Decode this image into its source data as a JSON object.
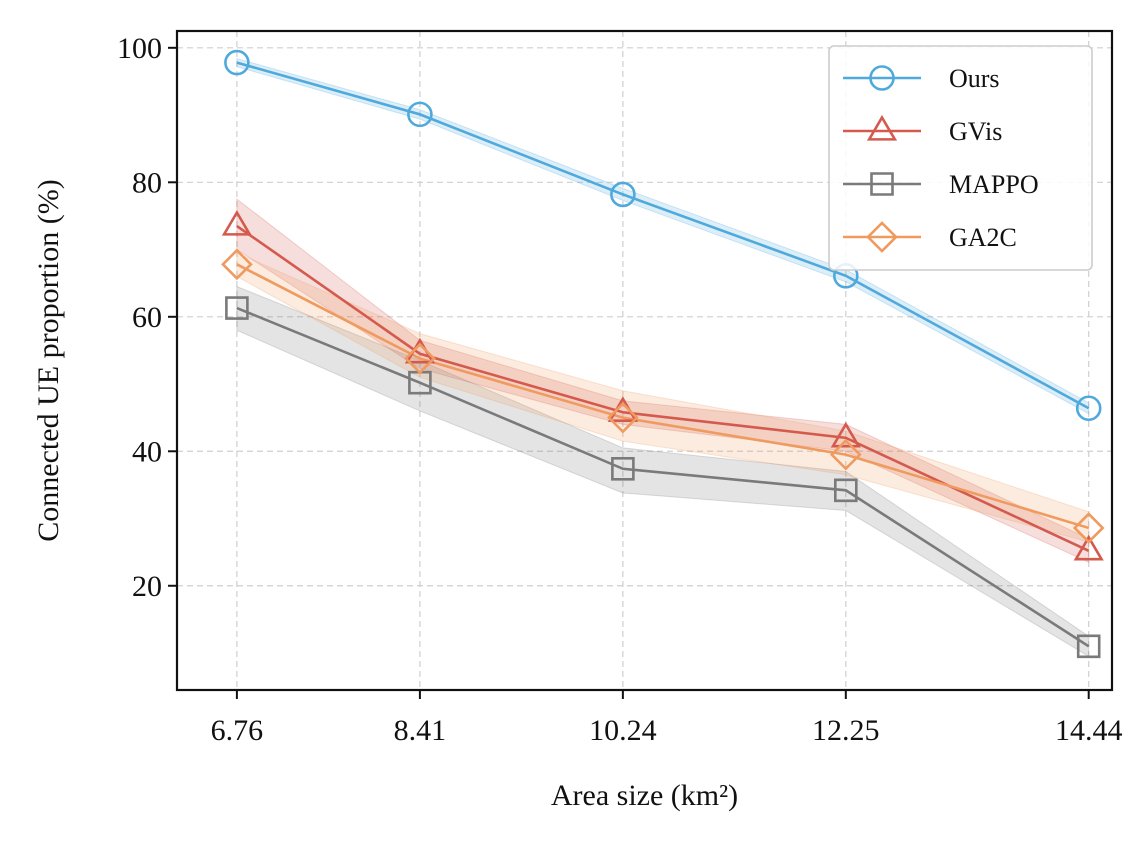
{
  "chart_data": {
    "type": "line",
    "title": "",
    "xlabel": "Area size (km²)",
    "ylabel": "Connected UE proportion (%)",
    "x": [
      6.76,
      8.41,
      10.24,
      12.25,
      14.44
    ],
    "x_tick_labels": [
      "6.76",
      "8.41",
      "10.24",
      "12.25",
      "14.44"
    ],
    "y_ticks": [
      20,
      40,
      60,
      80,
      100
    ],
    "y_tick_labels": [
      "20",
      "40",
      "60",
      "80",
      "100"
    ],
    "xlim": [
      6.22,
      14.65
    ],
    "ylim": [
      4.5,
      102.5
    ],
    "grid": true,
    "legend_position": "top-right",
    "series": [
      {
        "name": "Ours",
        "marker": "circle",
        "color": "#4fa9dd",
        "values": [
          97.8,
          90.1,
          78.2,
          66.1,
          46.4
        ],
        "lower": [
          97.2,
          89.4,
          77.3,
          65.2,
          45.6
        ],
        "upper": [
          98.4,
          90.8,
          79.1,
          67.0,
          47.2
        ]
      },
      {
        "name": "GVis",
        "marker": "triangle",
        "color": "#d45a4e",
        "values": [
          73.5,
          54.5,
          45.8,
          42.0,
          25.2
        ],
        "lower": [
          70.0,
          52.3,
          44.0,
          40.0,
          23.5
        ],
        "upper": [
          77.5,
          56.5,
          47.5,
          44.0,
          27.0
        ]
      },
      {
        "name": "MAPPO",
        "marker": "square",
        "color": "#7a7a7a",
        "values": [
          61.3,
          50.2,
          37.4,
          34.2,
          11.0
        ],
        "lower": [
          58.0,
          46.0,
          33.8,
          31.2,
          9.5
        ],
        "upper": [
          64.5,
          53.5,
          40.5,
          37.0,
          12.5
        ]
      },
      {
        "name": "GA2C",
        "marker": "diamond",
        "color": "#ef9a5f",
        "values": [
          67.8,
          53.8,
          45.0,
          39.5,
          28.6
        ],
        "lower": [
          66.0,
          51.0,
          41.5,
          36.5,
          26.5
        ],
        "upper": [
          69.5,
          57.5,
          49.0,
          43.0,
          31.0
        ]
      }
    ]
  }
}
